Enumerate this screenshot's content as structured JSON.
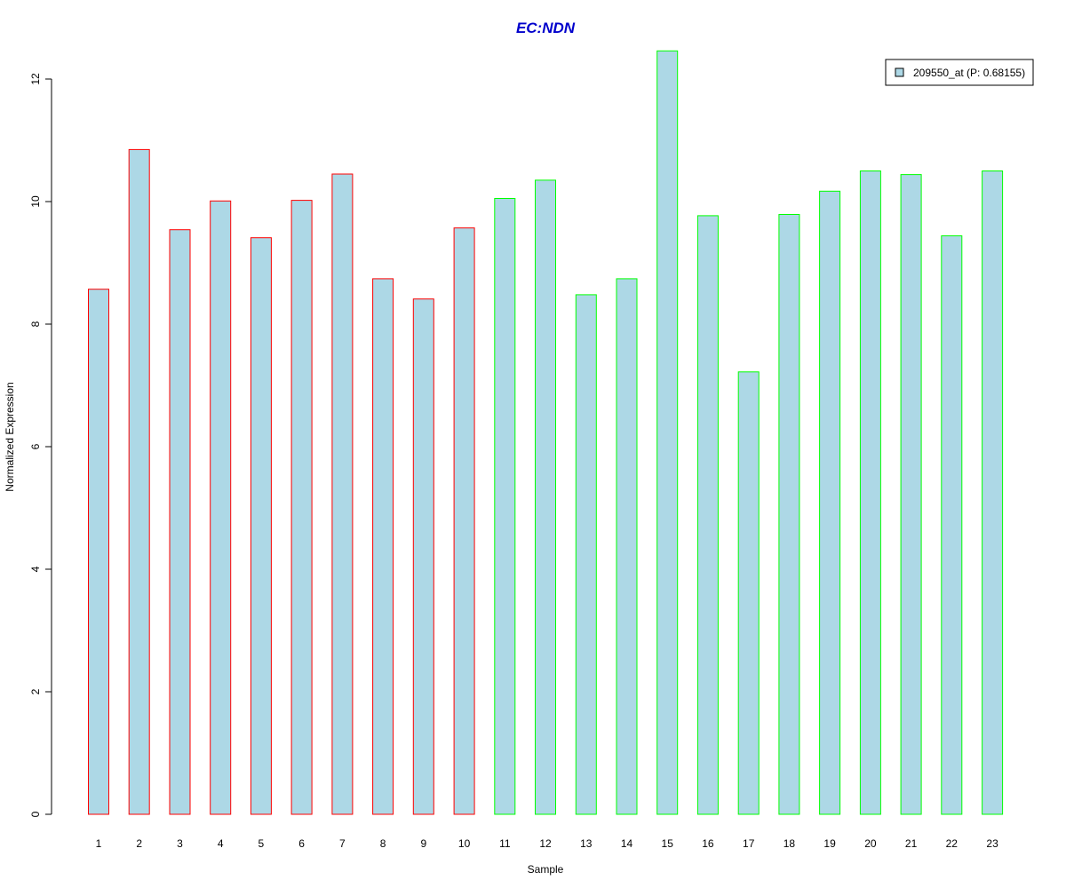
{
  "chart_data": {
    "type": "bar",
    "title": "EC:NDN",
    "xlabel": "Sample",
    "ylabel": "Normalized Expression",
    "ylim": [
      0,
      12.5
    ],
    "yticks": [
      0,
      2,
      4,
      6,
      8,
      10,
      12
    ],
    "categories": [
      "1",
      "2",
      "3",
      "4",
      "5",
      "6",
      "7",
      "8",
      "9",
      "10",
      "11",
      "12",
      "13",
      "14",
      "15",
      "16",
      "17",
      "18",
      "19",
      "20",
      "21",
      "22",
      "23"
    ],
    "series": [
      {
        "name": "209550_at (P: 0.68155)",
        "values": [
          8.57,
          10.85,
          9.54,
          10.01,
          9.41,
          10.02,
          10.45,
          8.74,
          8.41,
          9.57,
          10.05,
          10.35,
          8.48,
          8.74,
          12.46,
          9.77,
          7.22,
          9.79,
          10.17,
          10.5,
          10.44,
          9.44,
          10.5
        ]
      }
    ],
    "bar_groups": [
      1,
      1,
      1,
      1,
      1,
      1,
      1,
      1,
      1,
      1,
      2,
      2,
      2,
      2,
      2,
      2,
      2,
      2,
      2,
      2,
      2,
      2,
      2
    ],
    "grid": false,
    "legend_position": "top-right"
  },
  "colors": {
    "title": "#0000cc",
    "bar_fill": "#add8e6",
    "group1_border": "#ff0000",
    "group2_border": "#00ff00",
    "axis": "#000000"
  }
}
